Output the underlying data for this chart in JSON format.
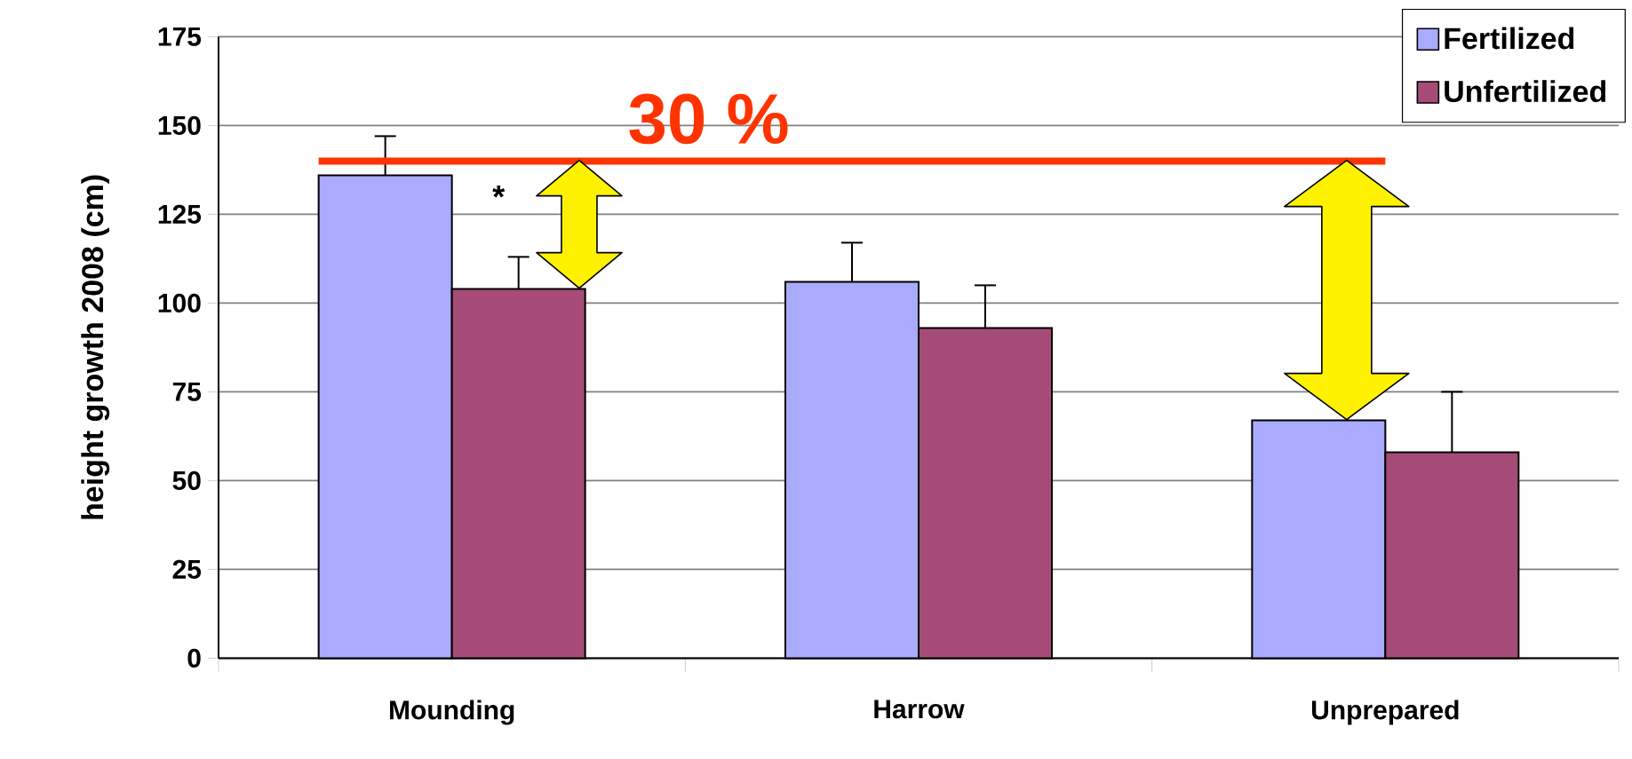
{
  "chart_data": {
    "type": "bar",
    "ylabel": "height growth 2008 (cm)",
    "categories": [
      "Mounding",
      "Harrow",
      "Unprepared"
    ],
    "series": [
      {
        "name": "Fertilized",
        "color": "#aaaaff",
        "values": [
          136,
          106,
          67
        ],
        "errors": [
          [
            136,
            147
          ],
          [
            106,
            117
          ],
          null
        ]
      },
      {
        "name": "Unfertilized",
        "color": "#a64b78",
        "values": [
          104,
          93,
          58
        ],
        "errors": [
          [
            104,
            113
          ],
          [
            93,
            105
          ],
          [
            58,
            75
          ]
        ]
      }
    ],
    "ylim": [
      0,
      175
    ],
    "yticks": [
      0,
      25,
      50,
      75,
      100,
      125,
      150,
      175
    ],
    "grid": "y",
    "legend": "top right",
    "ref_lines": [
      {
        "axis": "y",
        "value": 140,
        "color": "#ff3300"
      }
    ],
    "annotations": [
      {
        "text": "*",
        "x": "Mounding",
        "y": 130
      },
      "30 %"
    ]
  }
}
